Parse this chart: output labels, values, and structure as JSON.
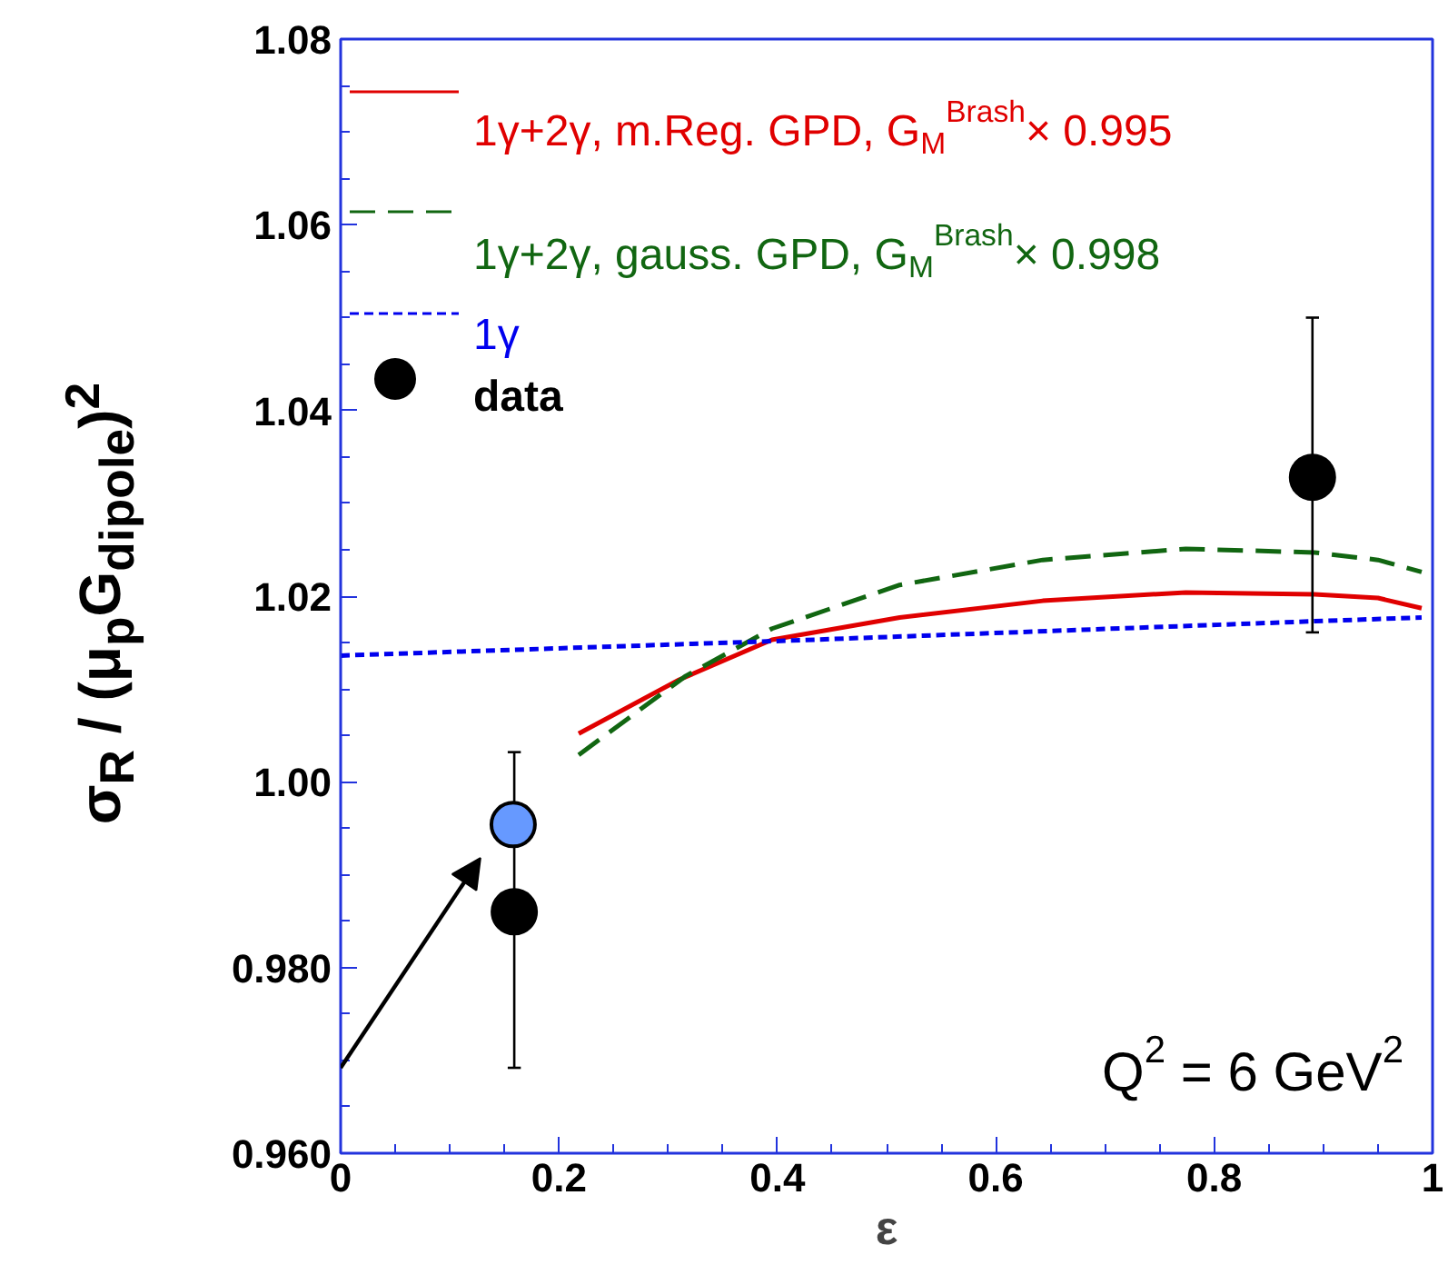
{
  "chart_data": {
    "type": "line",
    "xlabel": "ε",
    "ylabel": "σ$_{R}$ / (μ$_{p}$G$_{dipole}$)$^{2}$",
    "xlim": [
      0,
      1
    ],
    "ylim": [
      0.96,
      1.08
    ],
    "xticks": [
      0,
      0.2,
      0.4,
      0.6,
      0.8,
      1
    ],
    "yticks": [
      {
        "value": 0.96,
        "label": "0.960"
      },
      {
        "value": 0.98,
        "label": "0.980"
      },
      {
        "value": 1.0,
        "label": "1.00"
      },
      1.02,
      1.04,
      1.06,
      1.08
    ],
    "grid": false,
    "legend": "top",
    "annotations": [
      "Q$^{2}$ = 6 GeV$^{2}$"
    ],
    "series": [
      {
        "name": "1γ+2γ, m.Reg. GPD, G$_{M}$$^{Brash}$× 0.995",
        "line_style": "solid",
        "color": "#e00000",
        "x": [
          0.218,
          0.31,
          0.395,
          0.512,
          0.643,
          0.774,
          0.892,
          0.95,
          0.99
        ],
        "values": [
          1.0052,
          1.011,
          1.0153,
          1.0177,
          1.0195,
          1.0204,
          1.0202,
          1.0198,
          1.0187
        ]
      },
      {
        "name": "1γ+2γ, gauss. GPD, G$_{M}$$^{Brash}$× 0.998",
        "line_style": "dashed",
        "color": "#116611",
        "x": [
          0.218,
          0.316,
          0.395,
          0.512,
          0.643,
          0.774,
          0.892,
          0.95,
          0.99
        ],
        "values": [
          1.0029,
          1.0114,
          1.0165,
          1.0212,
          1.0239,
          1.0251,
          1.0247,
          1.0239,
          1.0226
        ]
      },
      {
        "name": "1γ",
        "line_style": "dotted",
        "color": "#0000ee",
        "x": [
          0,
          0.408,
          0.892,
          0.99
        ],
        "values": [
          1.0136,
          1.0152,
          1.0173,
          1.0177
        ]
      },
      {
        "name": "data",
        "type": "scatter",
        "marker": "circle",
        "color": "#000000",
        "x": [
          0.159,
          0.89
        ],
        "values": [
          0.986,
          1.0328
        ],
        "errors": [
          [
            0.9692,
            1.0032
          ],
          [
            1.0161,
            1.05
          ]
        ]
      },
      {
        "type": "scatter",
        "marker": "circle",
        "color": "#6699ff",
        "x": [
          0.158
        ],
        "values": [
          0.9954
        ]
      }
    ]
  }
}
